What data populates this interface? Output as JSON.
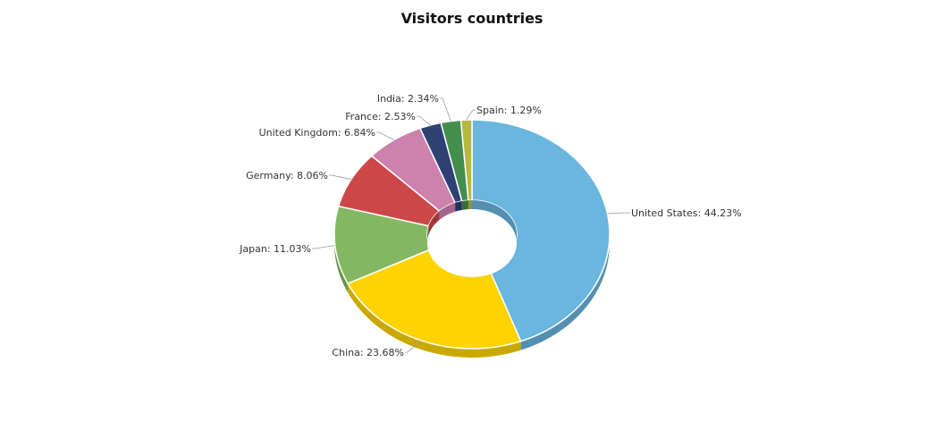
{
  "chart_data": {
    "type": "pie",
    "title": "Visitors countries",
    "series": [
      {
        "name": "United States",
        "value": 44.23,
        "label": "United States: 44.23%",
        "color": "#69b6de",
        "side": "#548fb0"
      },
      {
        "name": "China",
        "value": 23.68,
        "label": "China: 23.68%",
        "color": "#fed300",
        "side": "#c9a800"
      },
      {
        "name": "Japan",
        "value": 11.03,
        "label": "Japan: 11.03%",
        "color": "#84b761",
        "side": "#699249"
      },
      {
        "name": "Germany",
        "value": 8.06,
        "label": "Germany: 8.06%",
        "color": "#cc4748",
        "side": "#a23839"
      },
      {
        "name": "United Kingdom",
        "value": 6.84,
        "label": "United Kingdom: 6.84%",
        "color": "#cd82ad",
        "side": "#a3668a"
      },
      {
        "name": "France",
        "value": 2.53,
        "label": "France: 2.53%",
        "color": "#2f4074",
        "side": "#22305b"
      },
      {
        "name": "India",
        "value": 2.34,
        "label": "India: 2.34%",
        "color": "#448e4d",
        "side": "#356f3c"
      },
      {
        "name": "Spain",
        "value": 1.29,
        "label": "Spain: 1.29%",
        "color": "#b7b83f",
        "side": "#929332"
      }
    ],
    "donut": true,
    "depth_3d": true,
    "legend": "none"
  }
}
